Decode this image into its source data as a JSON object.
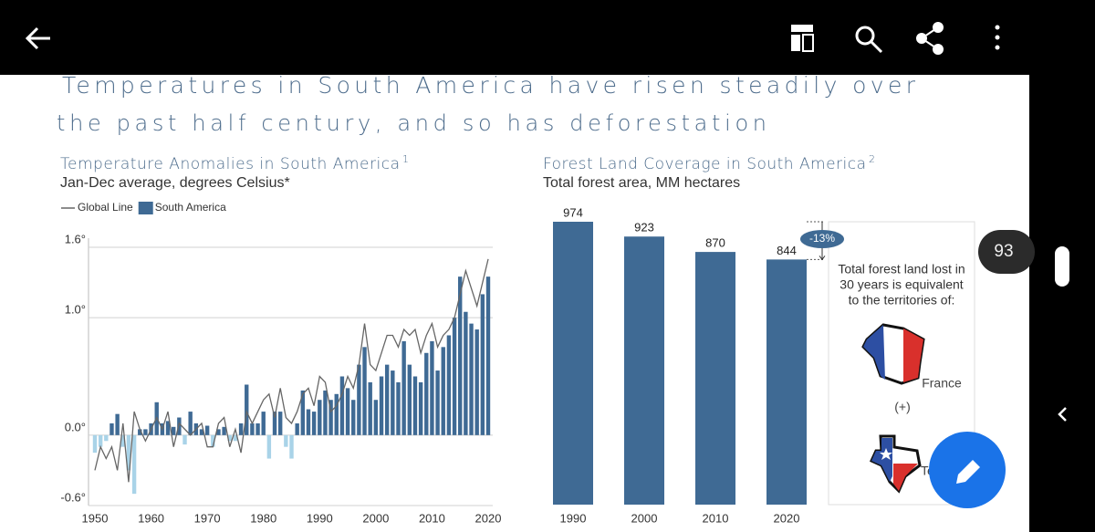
{
  "toolbar": {
    "page_number": "93"
  },
  "page": {
    "title_lines": [
      "Temperatures in South America have risen steadily over",
      "the past half century, and so has deforestation"
    ]
  },
  "chart_data": [
    {
      "type": "combo",
      "title": "Temperature Anomalies in South America",
      "title_note": "1",
      "subtitle": "Jan-Dec average, degrees Celsius*",
      "x": [
        1950,
        1951,
        1952,
        1953,
        1954,
        1955,
        1956,
        1957,
        1958,
        1959,
        1960,
        1961,
        1962,
        1963,
        1964,
        1965,
        1966,
        1967,
        1968,
        1969,
        1970,
        1971,
        1972,
        1973,
        1974,
        1975,
        1976,
        1977,
        1978,
        1979,
        1980,
        1981,
        1982,
        1983,
        1984,
        1985,
        1986,
        1987,
        1988,
        1989,
        1990,
        1991,
        1992,
        1993,
        1994,
        1995,
        1996,
        1997,
        1998,
        1999,
        2000,
        2001,
        2002,
        2003,
        2004,
        2005,
        2006,
        2007,
        2008,
        2009,
        2010,
        2011,
        2012,
        2013,
        2014,
        2015,
        2016,
        2017,
        2018,
        2019,
        2020
      ],
      "series": [
        {
          "name": "Global Line",
          "type": "line",
          "color": "#666666",
          "values": [
            -0.3,
            -0.1,
            -0.2,
            -0.1,
            -0.3,
            0.1,
            -0.4,
            0.2,
            0.05,
            -0.05,
            0.05,
            0.15,
            0.05,
            0.2,
            -0.1,
            0.1,
            0.05,
            0,
            0.05,
            0.1,
            -0.1,
            -0.1,
            0.1,
            0.15,
            -0.1,
            0.05,
            -0.15,
            0.2,
            0.1,
            0.2,
            0.3,
            0.35,
            0.15,
            0.4,
            0.15,
            0.1,
            0.2,
            0.35,
            0.4,
            0.25,
            0.5,
            0.45,
            0.2,
            0.25,
            0.35,
            0.5,
            0.4,
            0.6,
            0.95,
            0.6,
            0.55,
            0.7,
            0.85,
            0.85,
            0.75,
            0.9,
            0.85,
            0.9,
            0.7,
            0.85,
            0.95,
            0.75,
            0.85,
            0.9,
            1.0,
            1.2,
            1.4,
            1.25,
            1.1,
            1.3,
            1.5
          ]
        },
        {
          "name": "South America",
          "type": "bar",
          "color": "#3f6a94",
          "negative_color": "#a9d3e8",
          "values": [
            -0.15,
            -0.1,
            -0.05,
            0.1,
            0.18,
            -0.1,
            -0.3,
            -0.5,
            0.05,
            0.05,
            0.1,
            0.28,
            0.1,
            0.12,
            0.07,
            0.15,
            -0.08,
            0.2,
            0.1,
            0.05,
            0.08,
            -0.1,
            0.05,
            0.07,
            -0.05,
            -0.05,
            0.1,
            0.43,
            0.1,
            0.1,
            0.2,
            -0.2,
            0.2,
            0.2,
            -0.1,
            -0.2,
            0.1,
            0.38,
            0.22,
            0.2,
            0.3,
            0.38,
            0.3,
            0.35,
            0.5,
            0.4,
            0.3,
            0.6,
            0.75,
            0.45,
            0.3,
            0.5,
            0.6,
            0.55,
            0.45,
            0.8,
            0.6,
            0.5,
            0.45,
            0.7,
            0.8,
            0.55,
            0.75,
            0.85,
            1.0,
            1.35,
            1.05,
            0.95,
            0.9,
            1.2,
            1.35
          ]
        }
      ],
      "xlim": [
        1950,
        2020
      ],
      "xticks": [
        1950,
        1960,
        1970,
        1980,
        1990,
        2000,
        2010,
        2020
      ],
      "ylim": [
        -0.6,
        1.6
      ],
      "yticks": [
        {
          "value": -0.6,
          "label": "-0.6°"
        },
        {
          "value": 0.0,
          "label": "0.0°"
        },
        {
          "value": 1.0,
          "label": "1.0°"
        },
        {
          "value": 1.6,
          "label": "1.6°"
        }
      ],
      "grid": true
    },
    {
      "type": "bar",
      "title": "Forest Land Coverage in South America",
      "title_note": "2",
      "subtitle": "Total forest area, MM hectares",
      "categories": [
        "1990",
        "2000",
        "2010",
        "2020"
      ],
      "values": [
        974,
        923,
        870,
        844
      ],
      "color": "#3f6a94",
      "annotation": "-13%",
      "callout": {
        "lines": [
          "Total forest land lost in",
          "30 years is equivalent",
          "to the territories of:"
        ],
        "items": [
          "France",
          "(+)",
          "Texas"
        ]
      }
    }
  ]
}
